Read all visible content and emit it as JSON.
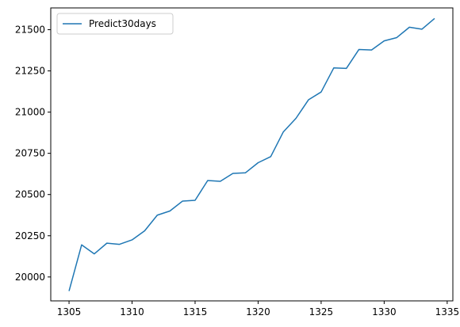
{
  "chart_data": {
    "type": "line",
    "title": "",
    "xlabel": "",
    "ylabel": "",
    "xlim": [
      1303.55,
      1335.45
    ],
    "ylim": [
      19855,
      21632
    ],
    "xticks": [
      1305,
      1310,
      1315,
      1320,
      1325,
      1330,
      1335
    ],
    "yticks": [
      20000,
      20250,
      20500,
      20750,
      21000,
      21250,
      21500
    ],
    "grid": false,
    "legend_position": "top-left",
    "series": [
      {
        "name": "Predict30days",
        "color": "#1f77b4",
        "x": [
          1305,
          1306,
          1307,
          1308,
          1309,
          1310,
          1311,
          1312,
          1313,
          1314,
          1315,
          1316,
          1317,
          1318,
          1319,
          1320,
          1321,
          1322,
          1323,
          1324,
          1325,
          1326,
          1327,
          1328,
          1329,
          1330,
          1331,
          1332,
          1333,
          1334
        ],
        "y": [
          19915,
          20195,
          20140,
          20205,
          20198,
          20225,
          20280,
          20375,
          20400,
          20460,
          20465,
          20585,
          20580,
          20628,
          20632,
          20693,
          20730,
          20880,
          20962,
          21075,
          21122,
          21268,
          21265,
          21380,
          21377,
          21432,
          21452,
          21515,
          21503,
          21568
        ]
      }
    ]
  }
}
